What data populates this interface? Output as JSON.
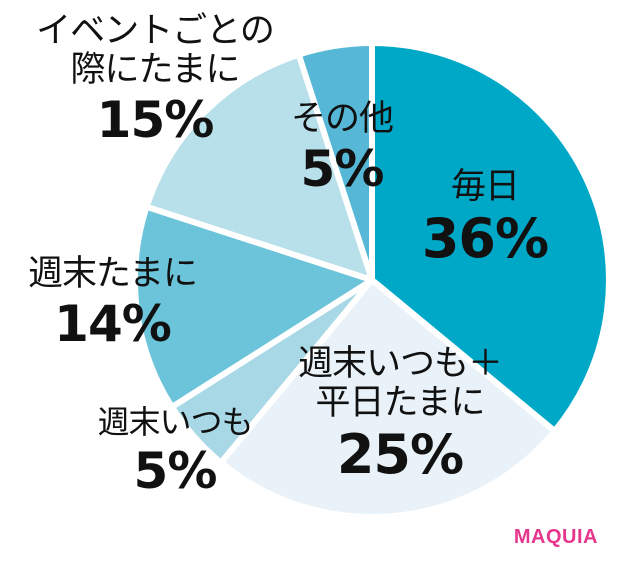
{
  "chart_data": {
    "type": "pie",
    "title": "",
    "start_angle_deg": 0,
    "direction": "clockwise",
    "slices": [
      {
        "label": "毎日",
        "value": 36,
        "color": "#00a8c8"
      },
      {
        "label": "週末いつも＋平日たまに",
        "value": 25,
        "color": "#e8f2f8"
      },
      {
        "label": "週末いつも",
        "value": 5,
        "color": "#a8d8e6"
      },
      {
        "label": "週末たまに",
        "value": 14,
        "color": "#6cc4da"
      },
      {
        "label": "イベントごとの際にたまに",
        "value": 15,
        "color": "#b8e0ea"
      },
      {
        "label": "その他",
        "value": 5,
        "color": "#56b8d6"
      }
    ],
    "unit": "%"
  },
  "labels": {
    "mainichi": {
      "name": "毎日",
      "pct": "36%"
    },
    "weekend_plus": {
      "name1": "週末いつも＋",
      "name2": "平日たまに",
      "pct": "25%"
    },
    "weekend_always": {
      "name": "週末いつも",
      "pct": "5%"
    },
    "weekend_sometimes": {
      "name": "週末たまに",
      "pct": "14%"
    },
    "event": {
      "name1": "イベントごとの",
      "name2": "際にたまに",
      "pct": "15%"
    },
    "other": {
      "name": "その他",
      "pct": "5%"
    }
  },
  "brand": {
    "logo_text": "MAQUIA",
    "color": "#e6378c"
  }
}
